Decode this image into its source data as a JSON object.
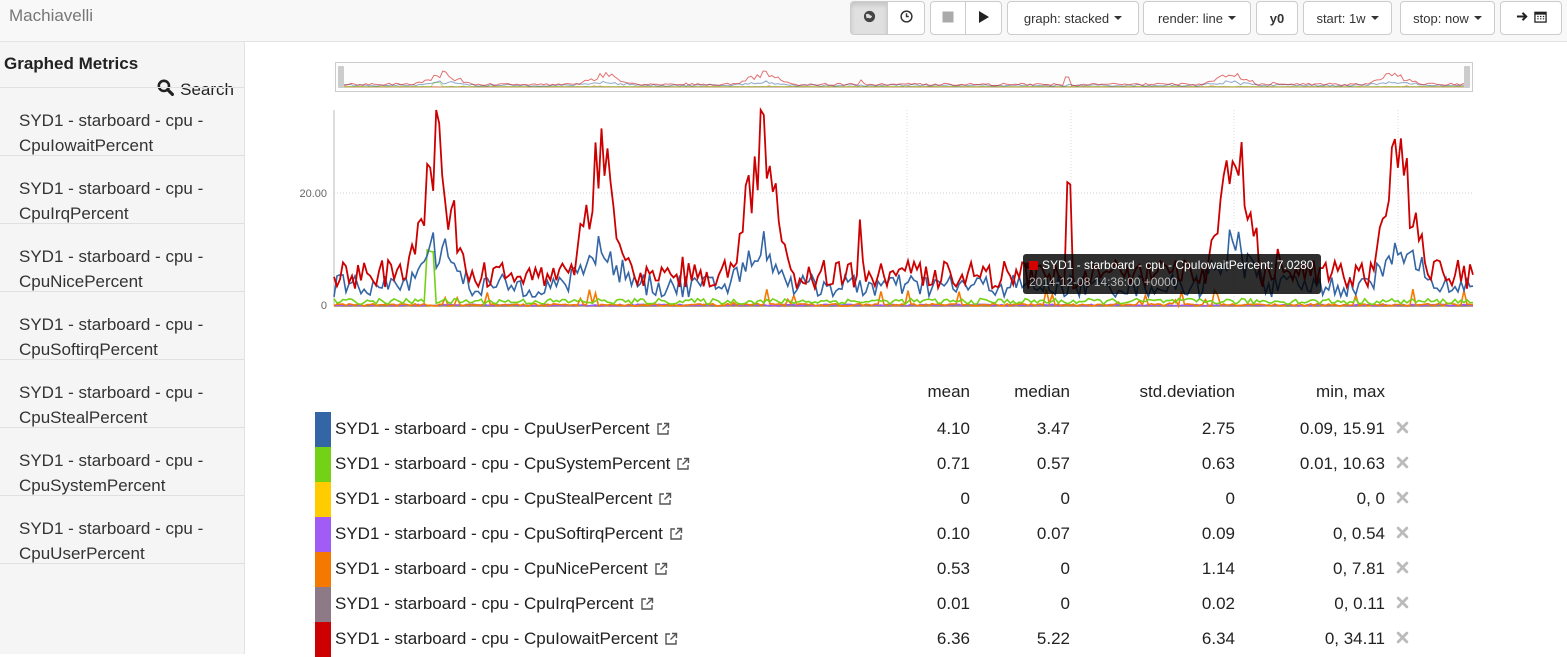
{
  "app": {
    "title": "Machiavelli"
  },
  "toolbar": {
    "graph_label": "graph: stacked",
    "render_label": "render: line",
    "y0_label": "y0",
    "start_label": "start: 1w",
    "stop_label": "stop: now"
  },
  "sidebar": {
    "title": "Graphed Metrics",
    "search_label": "Search",
    "items": [
      {
        "line1": "SYD1 - starboard - cpu -",
        "line2": "CpuIowaitPercent"
      },
      {
        "line1": "SYD1 - starboard - cpu -",
        "line2": "CpuIrqPercent"
      },
      {
        "line1": "SYD1 - starboard - cpu -",
        "line2": "CpuNicePercent"
      },
      {
        "line1": "SYD1 - starboard - cpu -",
        "line2": "CpuSoftirqPercent"
      },
      {
        "line1": "SYD1 - starboard - cpu -",
        "line2": "CpuStealPercent"
      },
      {
        "line1": "SYD1 - starboard - cpu -",
        "line2": "CpuSystemPercent"
      },
      {
        "line1": "SYD1 - starboard - cpu -",
        "line2": "CpuUserPercent"
      }
    ]
  },
  "chart": {
    "y_ticks": [
      "20.00",
      "0"
    ],
    "tooltip": {
      "label": "SYD1 - starboard - cpu - CpuIowaitPercent: 7.0280",
      "time": "2014-12-08 14:36:00 +0000"
    }
  },
  "chart_data": {
    "type": "line",
    "ylim": [
      0,
      34.11
    ],
    "series": [
      {
        "name": "SYD1 - starboard - cpu - CpuUserPercent",
        "color": "#3465a4"
      },
      {
        "name": "SYD1 - starboard - cpu - CpuSystemPercent",
        "color": "#73d216"
      },
      {
        "name": "SYD1 - starboard - cpu - CpuStealPercent",
        "color": "#edd400"
      },
      {
        "name": "SYD1 - starboard - cpu - CpuSoftirqPercent",
        "color": "#9b59f6"
      },
      {
        "name": "SYD1 - starboard - cpu - CpuNicePercent",
        "color": "#f57900"
      },
      {
        "name": "SYD1 - starboard - cpu - CpuIrqPercent",
        "color": "#8e7a86"
      },
      {
        "name": "SYD1 - starboard - cpu - CpuIowaitPercent",
        "color": "#cc0000"
      }
    ]
  },
  "legend": {
    "headers": {
      "mean": "mean",
      "median": "median",
      "std": "std.deviation",
      "minmax": "min, max"
    },
    "rows": [
      {
        "name": "SYD1 - starboard - cpu - CpuUserPercent",
        "color": "#3465a4",
        "mean": "4.10",
        "median": "3.47",
        "std": "2.75",
        "minmax": "0.09, 15.91"
      },
      {
        "name": "SYD1 - starboard - cpu - CpuSystemPercent",
        "color": "#73d216",
        "mean": "0.71",
        "median": "0.57",
        "std": "0.63",
        "minmax": "0.01, 10.63"
      },
      {
        "name": "SYD1 - starboard - cpu - CpuStealPercent",
        "color": "#ffcc00",
        "mean": "0",
        "median": "0",
        "std": "0",
        "minmax": "0, 0"
      },
      {
        "name": "SYD1 - starboard - cpu - CpuSoftirqPercent",
        "color": "#a05cf5",
        "mean": "0.10",
        "median": "0.07",
        "std": "0.09",
        "minmax": "0, 0.54"
      },
      {
        "name": "SYD1 - starboard - cpu - CpuNicePercent",
        "color": "#f57900",
        "mean": "0.53",
        "median": "0",
        "std": "1.14",
        "minmax": "0, 7.81"
      },
      {
        "name": "SYD1 - starboard - cpu - CpuIrqPercent",
        "color": "#8e7a86",
        "mean": "0.01",
        "median": "0",
        "std": "0.02",
        "minmax": "0, 0.11"
      },
      {
        "name": "SYD1 - starboard - cpu - CpuIowaitPercent",
        "color": "#cc0000",
        "mean": "6.36",
        "median": "5.22",
        "std": "6.34",
        "minmax": "0, 34.11"
      }
    ]
  }
}
